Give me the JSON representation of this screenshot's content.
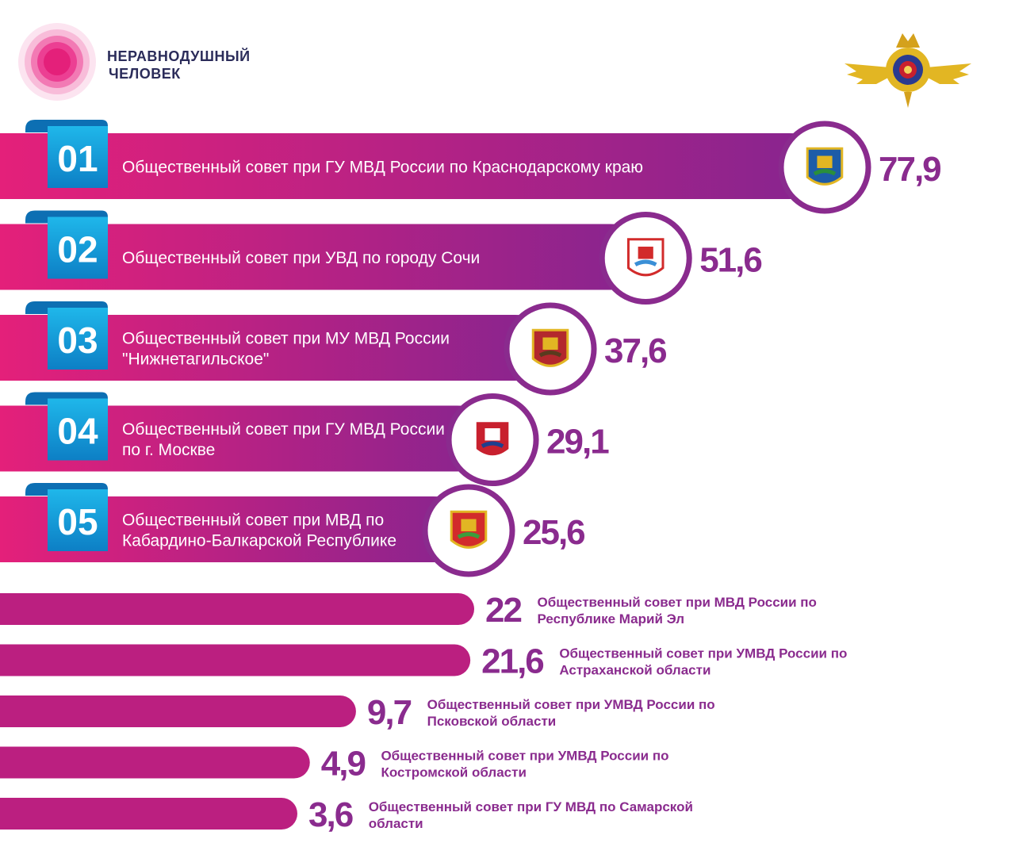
{
  "brand": {
    "line1": "НЕРАВНОДУШНЫЙ",
    "line2": "ЧЕЛОВЕК"
  },
  "icons": {
    "logo": "pink-circle-logo-icon",
    "emblem": "mvd-double-headed-eagle-emblem-icon"
  },
  "colors": {
    "bar_start": "#e4207a",
    "bar_end": "#86248f",
    "bar_small": "#bb1f80",
    "badge_top": "#1fb7ea",
    "badge_bottom": "#0d7fc5",
    "value_text": "#8a2b8e",
    "label_small": "#8a2b8e",
    "ring": "#8a2b8e"
  },
  "chart_data": {
    "type": "bar",
    "orientation": "horizontal",
    "ranks": [
      "01",
      "02",
      "03",
      "04",
      "05"
    ],
    "categories": [
      [
        "Общественный совет при ГУ МВД России по Краснодарскому краю"
      ],
      [
        "Общественный совет при УВД по городу Сочи"
      ],
      [
        "Общественный совет при МУ МВД России",
        "\"Нижнетагильское\""
      ],
      [
        "Общественный совет при ГУ МВД России",
        "по г. Москве"
      ],
      [
        "Общественный совет при МВД по",
        "Кабардино-Балкарской Республике"
      ],
      [
        "Общественный совет при МВД России по",
        "Республике Марий Эл"
      ],
      [
        "Общественный совет при УМВД России по",
        "Астраханской области"
      ],
      [
        "Общественный совет при УМВД России по",
        "Псковской области"
      ],
      [
        "Общественный совет при УМВД России по",
        "Костромской области"
      ],
      [
        "Общественный совет при ГУ МВД по Самарской",
        "области"
      ]
    ],
    "value_labels": [
      "77,9",
      "51,6",
      "37,6",
      "29,1",
      "25,6",
      "22",
      "21,6",
      "9,7",
      "4,9",
      "3,6"
    ],
    "values": [
      77.9,
      51.6,
      37.6,
      29.1,
      25.6,
      22,
      21.6,
      9.7,
      4.9,
      3.6
    ],
    "coat_of_arms": [
      "krasnodar-krai-coat-of-arms-icon",
      "sochi-coat-of-arms-icon",
      "nizhny-tagil-coat-of-arms-icon",
      "moscow-coat-of-arms-icon",
      "kabardino-balkaria-coat-of-arms-icon"
    ]
  }
}
